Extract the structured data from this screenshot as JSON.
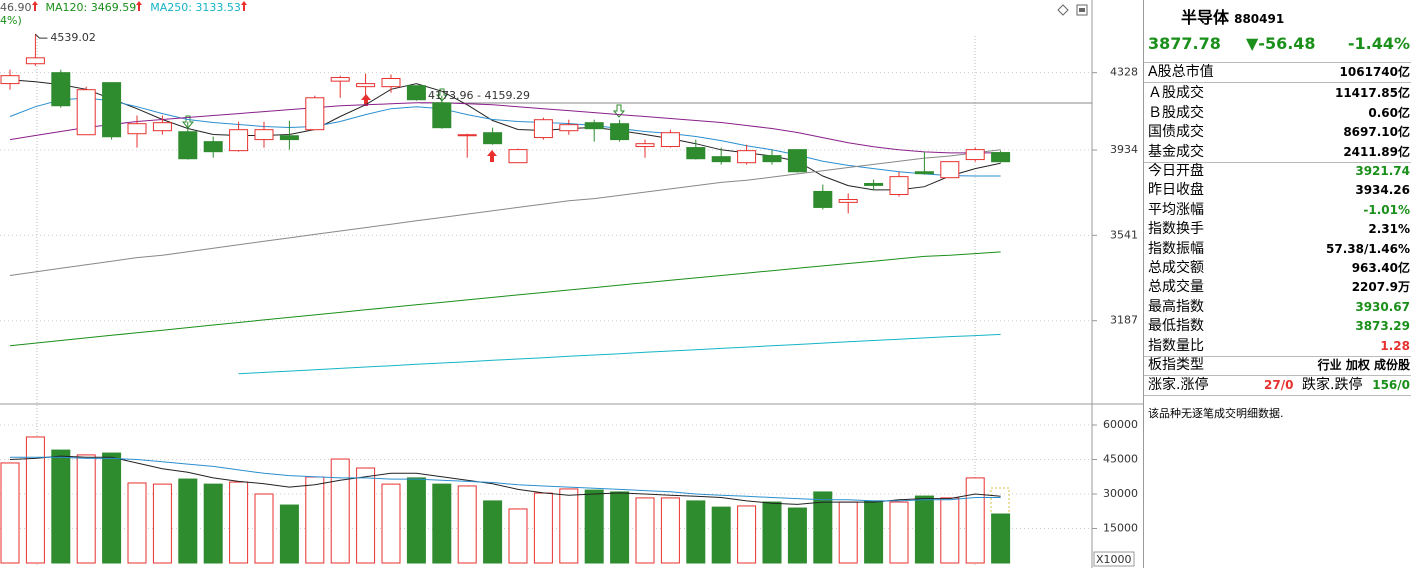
{
  "header": {
    "ma_values": [
      {
        "text": "46.90",
        "color": "#555555"
      },
      {
        "text": "MA120: 3469.59",
        "color": "#1a8f1a"
      },
      {
        "text": "MA250: 3133.53",
        "color": "#15b4c6"
      }
    ],
    "fragment": "4%)",
    "fragment_color": "#1a8f1a"
  },
  "chart_data": [
    {
      "type": "candlestick",
      "up_color": "#e8312f",
      "down_color": "#2e8b2e",
      "log": true,
      "ylim": [
        2890,
        4630
      ],
      "yticks": [
        4328,
        3934,
        3541,
        3187
      ],
      "grid": true,
      "annotations": [
        "4539.02",
        "4173.96 - 4159.29"
      ],
      "open": [
        4270,
        4376,
        4328,
        4009,
        4275,
        4014,
        4029,
        4024,
        3975,
        3931,
        3985,
        4004,
        4034,
        4283,
        4254,
        4254,
        4259,
        4170,
        4004,
        4019,
        3873,
        3995,
        4029,
        4069,
        4064,
        3951,
        3951,
        3946,
        3902,
        3873,
        3907,
        3936,
        3738,
        3688,
        3775,
        3724,
        3830,
        3802,
        3888,
        3921.74
      ],
      "high": [
        4344,
        4539.02,
        4344,
        4254,
        4275,
        4105,
        4105,
        4074,
        4000,
        4074,
        4074,
        4079,
        4207,
        4312,
        4323,
        4318,
        4259,
        4207,
        4014,
        4044,
        3941,
        4094,
        4084,
        4084,
        4084,
        3985,
        4034,
        3985,
        3946,
        3960,
        3936,
        3936,
        3770,
        3729,
        3793,
        3830,
        3926,
        3878,
        3946,
        3930.67
      ],
      "low": [
        4238,
        4365,
        4145,
        4009,
        3985,
        3946,
        4009,
        3888,
        3897,
        3926,
        3946,
        3936,
        4034,
        4196,
        4170,
        4222,
        4181,
        4039,
        3897,
        3960,
        3873,
        3985,
        4009,
        3975,
        3975,
        3897,
        3946,
        3888,
        3864,
        3864,
        3864,
        3826,
        3656,
        3638,
        3743,
        3715,
        3816,
        3802,
        3878,
        3873.29
      ],
      "close": [
        4312,
        4408,
        4155,
        4238,
        3999,
        4064,
        4069,
        3892,
        3926,
        4034,
        4034,
        3985,
        4196,
        4302,
        4270,
        4297,
        4186,
        4044,
        4009,
        3965,
        3936,
        4084,
        4059,
        4039,
        3985,
        3965,
        4019,
        3892,
        3878,
        3931,
        3878,
        3830,
        3665,
        3701,
        3766,
        3807,
        3821,
        3878,
        3936,
        3877.78
      ],
      "series": [
        {
          "color": "#222222",
          "values": [
            4290,
            4280,
            4265,
            4240,
            4190,
            4140,
            4085,
            4040,
            4010,
            4005,
            4005,
            4010,
            4035,
            4100,
            4160,
            4240,
            4270,
            4230,
            4160,
            4080,
            4035,
            4030,
            4040,
            4045,
            4030,
            4010,
            3990,
            3965,
            3935,
            3920,
            3905,
            3880,
            3810,
            3765,
            3745,
            3745,
            3760,
            3810,
            3845,
            3870
          ]
        },
        {
          "color": "#2a8fd0",
          "values": [
            4100,
            4150,
            4185,
            4195,
            4180,
            4150,
            4115,
            4085,
            4070,
            4060,
            4050,
            4045,
            4050,
            4075,
            4110,
            4140,
            4150,
            4140,
            4110,
            4085,
            4075,
            4070,
            4065,
            4055,
            4040,
            4025,
            4015,
            4000,
            3980,
            3955,
            3935,
            3910,
            3880,
            3860,
            3845,
            3830,
            3820,
            3812,
            3810,
            3810
          ]
        },
        {
          "color": "#8a1f8a",
          "values": [
            3985,
            4005,
            4025,
            4045,
            4060,
            4075,
            4085,
            4095,
            4105,
            4115,
            4125,
            4135,
            4145,
            4155,
            4160,
            4165,
            4170,
            4170,
            4165,
            4160,
            4150,
            4140,
            4130,
            4120,
            4110,
            4100,
            4090,
            4080,
            4070,
            4055,
            4040,
            4020,
            3995,
            3970,
            3950,
            3935,
            3925,
            3920,
            3920,
            3920
          ]
        },
        {
          "color": "#888888",
          "values": [
            3370,
            3385,
            3400,
            3415,
            3430,
            3445,
            3455,
            3470,
            3485,
            3500,
            3515,
            3530,
            3545,
            3560,
            3575,
            3590,
            3605,
            3620,
            3635,
            3650,
            3665,
            3680,
            3695,
            3705,
            3720,
            3735,
            3750,
            3765,
            3780,
            3790,
            3805,
            3820,
            3835,
            3850,
            3865,
            3880,
            3895,
            3905,
            3920,
            3935
          ]
        },
        {
          "color": "#1a8f1a",
          "values": [
            3090,
            3100,
            3110,
            3120,
            3130,
            3140,
            3150,
            3160,
            3170,
            3180,
            3190,
            3200,
            3210,
            3220,
            3230,
            3240,
            3250,
            3260,
            3270,
            3280,
            3290,
            3300,
            3310,
            3320,
            3330,
            3340,
            3350,
            3360,
            3370,
            3380,
            3390,
            3400,
            3410,
            3420,
            3430,
            3440,
            3450,
            3455,
            3462,
            3469.59
          ]
        },
        {
          "color": "#15b4c6",
          "values": [
            null,
            null,
            null,
            null,
            null,
            null,
            null,
            null,
            null,
            2985,
            2990,
            2995,
            3000,
            3005,
            3010,
            3015,
            3020,
            3025,
            3030,
            3035,
            3040,
            3045,
            3050,
            3055,
            3060,
            3065,
            3070,
            3075,
            3080,
            3085,
            3090,
            3095,
            3100,
            3105,
            3110,
            3115,
            3120,
            3125,
            3129,
            3133.53
          ]
        }
      ]
    },
    {
      "type": "bar",
      "up_color": "#e8312f",
      "down_color": "#2e8b2e",
      "ylim": [
        0,
        68700
      ],
      "yticks": [
        60000,
        45000,
        30000,
        15000
      ],
      "grid": true,
      "unit_label": "X1000",
      "values": [
        43500,
        54800,
        49100,
        47000,
        47800,
        34800,
        34300,
        36500,
        34300,
        35200,
        30000,
        25200,
        37400,
        45200,
        41300,
        34300,
        37000,
        34300,
        33500,
        27000,
        23500,
        30400,
        32200,
        31700,
        30900,
        28300,
        28300,
        27000,
        24300,
        24800,
        26500,
        23900,
        30900,
        26500,
        27000,
        26500,
        29100,
        28300,
        37000,
        21300
      ],
      "series": [
        {
          "color": "#222222",
          "values": [
            45000,
            45500,
            46500,
            46000,
            46000,
            43500,
            41000,
            39500,
            37000,
            35500,
            34500,
            33000,
            34000,
            36000,
            37500,
            39000,
            39000,
            37500,
            36000,
            34500,
            32000,
            30500,
            29500,
            30000,
            30500,
            30000,
            29500,
            29000,
            28500,
            27000,
            26000,
            25500,
            26500,
            26500,
            26500,
            27500,
            28000,
            28000,
            30000,
            29000
          ]
        },
        {
          "color": "#2a8fd0",
          "values": [
            46000,
            46000,
            46000,
            45500,
            45500,
            45000,
            44000,
            43000,
            42000,
            40500,
            39000,
            38000,
            37500,
            37000,
            37000,
            36500,
            36500,
            36000,
            35500,
            35000,
            34000,
            33500,
            33000,
            32500,
            32000,
            31500,
            31000,
            30000,
            29500,
            29000,
            28500,
            28000,
            27500,
            27500,
            27000,
            27000,
            27500,
            27500,
            28500,
            28500
          ]
        }
      ]
    }
  ],
  "quote": {
    "name": "半导体",
    "code": "880491",
    "price": "3877.78",
    "change": "▼-56.48",
    "change_pct": "-1.44%",
    "color": "#1a8f1a",
    "rows": [
      {
        "label": "A股总市值",
        "value": "1061740亿",
        "color": "#000000"
      },
      {
        "label": "Ａ股成交",
        "value": "11417.85亿",
        "color": "#000000"
      },
      {
        "label": "Ｂ股成交",
        "value": "0.60亿",
        "color": "#000000"
      },
      {
        "label": "国债成交",
        "value": "8697.10亿",
        "color": "#000000"
      },
      {
        "label": "基金成交",
        "value": "2411.89亿",
        "color": "#000000"
      },
      {
        "label": "今日开盘",
        "value": "3921.74",
        "color": "#1a8f1a"
      },
      {
        "label": "昨日收盘",
        "value": "3934.26",
        "color": "#000000"
      },
      {
        "label": "平均涨幅",
        "value": "-1.01%",
        "color": "#1a8f1a"
      },
      {
        "label": "指数换手",
        "value": "2.31%",
        "color": "#000000"
      },
      {
        "label": "指数振幅",
        "value": "57.38/1.46%",
        "color": "#000000"
      },
      {
        "label": "总成交额",
        "value": "963.40亿",
        "color": "#000000"
      },
      {
        "label": "总成交量",
        "value": "2207.9万",
        "color": "#000000"
      },
      {
        "label": "最高指数",
        "value": "3930.67",
        "color": "#1a8f1a"
      },
      {
        "label": "最低指数",
        "value": "3873.29",
        "color": "#1a8f1a"
      },
      {
        "label": "指数量比",
        "value": "1.28",
        "color": "#e8312f"
      },
      {
        "label": "板指类型",
        "value": "行业 加权 成份股",
        "color": "#000000"
      }
    ],
    "breadth": {
      "up_label": "涨家.涨停",
      "up_value": "27/0",
      "up_color": "#e8312f",
      "down_label": "跌家.跌停",
      "down_value": "156/0",
      "down_color": "#1a8f1a"
    },
    "note": "该品种无逐笔成交明细数据."
  }
}
